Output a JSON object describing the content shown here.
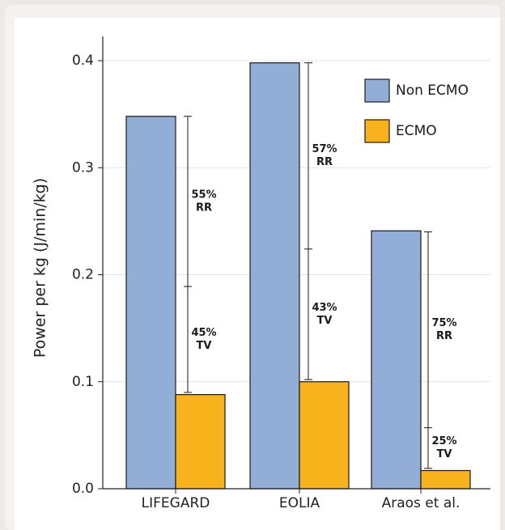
{
  "chart_data": {
    "type": "bar",
    "title": "",
    "xlabel": "",
    "ylabel": "Power per kg (J/min/kg)",
    "ylim": [
      0,
      0.4
    ],
    "yticks": [
      "0.0",
      "0.1",
      "0.2",
      "0.3",
      "0.4"
    ],
    "categories": [
      "LIFEGARD",
      "EOLIA",
      "Araos et al."
    ],
    "series": [
      {
        "name": "Non ECMO",
        "color": "#93aed6",
        "values": [
          0.348,
          0.398,
          0.241
        ]
      },
      {
        "name": "ECMO",
        "color": "#f8b21c",
        "values": [
          0.088,
          0.1,
          0.017
        ]
      }
    ],
    "legend_position": "top-right",
    "grid": "horizontal",
    "annotations": [
      {
        "category": "LIFEGARD",
        "top": 0.348,
        "split": 0.189,
        "bottom": 0.09,
        "upper_pct": "55%",
        "upper_label": "RR",
        "lower_pct": "45%",
        "lower_label": "TV"
      },
      {
        "category": "EOLIA",
        "top": 0.398,
        "split": 0.224,
        "bottom": 0.102,
        "upper_pct": "57%",
        "upper_label": "RR",
        "lower_pct": "43%",
        "lower_label": "TV"
      },
      {
        "category": "Araos et al.",
        "top": 0.24,
        "split": 0.057,
        "bottom": 0.019,
        "upper_pct": "75%",
        "upper_label": "RR",
        "lower_pct": "25%",
        "lower_label": "TV"
      }
    ]
  }
}
